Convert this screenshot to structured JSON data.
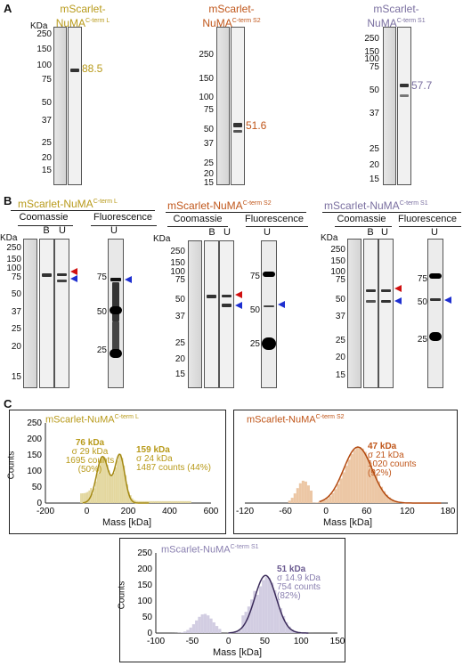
{
  "panels": {
    "a": "A",
    "b": "B",
    "c": "C"
  },
  "panelA": {
    "gels": [
      {
        "title_line1": "mScarlet-",
        "title_main": "NuMA",
        "title_sup": "C-term L",
        "color": "#b89a1a",
        "kda": "KDa",
        "mw": [
          "250",
          "150",
          "100",
          "75",
          "50",
          "37",
          "25",
          "20",
          "15"
        ],
        "value": "88.5"
      },
      {
        "title_line1": "mScarlet-",
        "title_main": "NuMA",
        "title_sup": "C-term S2",
        "color": "#c0561a",
        "kda": "KDa",
        "mw": [
          "250",
          "150",
          "100",
          "75",
          "50",
          "37",
          "25",
          "20",
          "15"
        ],
        "value": "51.6"
      },
      {
        "title_line1": "mScarlet-",
        "title_main": "NuMA",
        "title_sup": "C-term S1",
        "color": "#7a6fa0",
        "kda": "KDa",
        "mw": [
          "250",
          "150",
          "100",
          "75",
          "50",
          "37",
          "25",
          "20",
          "15"
        ],
        "value": "57.7"
      }
    ]
  },
  "panelB": {
    "titles": [
      {
        "main": "mScarlet-NuMA",
        "sup": "C-term L",
        "color": "#b89a1a"
      },
      {
        "main": "mScarlet-NuMA",
        "sup": "C-term S2",
        "color": "#c0561a"
      },
      {
        "main": "mScarlet-NuMA",
        "sup": "C-term S1",
        "color": "#7a6fa0"
      }
    ],
    "coomassie": "Coomassie",
    "fluorescence": "Fluorescence",
    "lane_b": "B",
    "lane_u": "U",
    "kda": "KDa",
    "mw": [
      "250",
      "150",
      "100",
      "75",
      "50",
      "37",
      "25",
      "20",
      "15"
    ],
    "fl_mw": [
      "75",
      "50",
      "25"
    ]
  },
  "panelC": {
    "plots": [
      {
        "title_main": "mScarlet-NuMA",
        "title_sup": "C-term L",
        "color": "#b89a1a",
        "peak1": {
          "kda": "76 kDa",
          "sigma": "σ 29 kDa",
          "counts": "1695 counts",
          "pct": "(50%)"
        },
        "peak2": {
          "kda": "159 kDa",
          "sigma": "σ 24 kDa",
          "counts": "1487 counts (44%)"
        },
        "ylabel": "Counts",
        "xlabel": "Mass [kDa]",
        "xticks": [
          "-200",
          "0",
          "200",
          "400",
          "600"
        ],
        "yticks": [
          "0",
          "50",
          "100",
          "150",
          "200",
          "250"
        ]
      },
      {
        "title_main": "mScarlet-NuMA",
        "title_sup": "C-term S2",
        "color": "#c0561a",
        "peak1": {
          "kda": "47 kDa",
          "sigma": "σ 21 kDa",
          "counts": "1020 counts",
          "pct": "(92%)"
        },
        "xlabel": "Mass [kDa]",
        "xticks": [
          "-120",
          "-60",
          "0",
          "60",
          "120",
          "180"
        ]
      },
      {
        "title_main": "mScarlet-NuMA",
        "title_sup": "C-term S1",
        "color": "#6a5a90",
        "peak1": {
          "kda": "51 kDa",
          "sigma": "σ 14.9 kDa",
          "counts": "754 counts",
          "pct": "(82%)"
        },
        "ylabel": "Counts",
        "xlabel": "Mass [kDa]",
        "xticks": [
          "-100",
          "-50",
          "0",
          "50",
          "100",
          "150"
        ],
        "yticks": [
          "0",
          "50",
          "100",
          "150",
          "200",
          "250"
        ]
      }
    ]
  }
}
